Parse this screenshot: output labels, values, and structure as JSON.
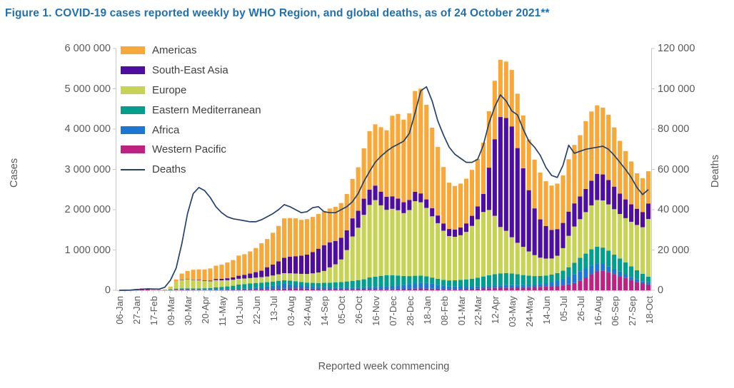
{
  "title": "Figure 1. COVID-19 cases reported weekly by WHO Region, and global deaths, as of 24 October 2021**",
  "colors": {
    "title": "#2170B5",
    "axis_text": "#595959",
    "legend_text": "#3F3F3F",
    "axis_line": "#C9C9C9",
    "americas": "#F8A838",
    "south_east_asia": "#4E0CA0",
    "europe": "#C6D354",
    "eastern_mediterranean": "#009E8C",
    "africa": "#1C76D4",
    "western_pacific": "#BF2181",
    "deaths_line": "#25416B"
  },
  "axes": {
    "left_title": "Cases",
    "right_title": "Deaths",
    "x_title": "Reported week commencing",
    "left_ticks": [
      "0",
      "1 000 000",
      "2 000 000",
      "3 000 000",
      "4 000 000",
      "5 000 000",
      "6 000 000"
    ],
    "right_ticks": [
      "0",
      "20 000",
      "40 000",
      "60 000",
      "80 000",
      "100 000",
      "120 000"
    ]
  },
  "legend": [
    {
      "label": "Americas",
      "color": "#F8A838",
      "type": "box"
    },
    {
      "label": "South-East Asia",
      "color": "#4E0CA0",
      "type": "box"
    },
    {
      "label": "Europe",
      "color": "#C6D354",
      "type": "box"
    },
    {
      "label": "Eastern Mediterranean",
      "color": "#009E8C",
      "type": "box"
    },
    {
      "label": "Africa",
      "color": "#1C76D4",
      "type": "box"
    },
    {
      "label": "Western Pacific",
      "color": "#BF2181",
      "type": "box"
    },
    {
      "label": "Deaths",
      "color": "#25416B",
      "type": "line"
    }
  ],
  "chart_data": {
    "type": "bar",
    "stacked": true,
    "title": "COVID-19 cases reported weekly by WHO Region, and global deaths",
    "xlabel": "Reported week commencing",
    "ylabel_left": "Cases",
    "ylabel_right": "Deaths",
    "ylim_left": [
      0,
      6000000
    ],
    "ylim_right": [
      0,
      120000
    ],
    "grid": false,
    "legend_position": "top-left-inside",
    "x_tick_every": 3,
    "x_tick_labels": [
      "06-Jan",
      "27-Jan",
      "17-Feb",
      "09-Mar",
      "30-Mar",
      "20-Apr",
      "11-May",
      "01-Jun",
      "22-Jun",
      "13-Jul",
      "03-Aug",
      "24-Aug",
      "14-Sep",
      "05-Oct",
      "26-Oct",
      "16-Nov",
      "07-Dec",
      "28-Dec",
      "18-Jan",
      "08-Feb",
      "01-Mar",
      "22-Mar",
      "12-Apr",
      "03-May",
      "24-May",
      "14-Jun",
      "05-Jul",
      "26-Jul",
      "16-Aug",
      "06-Sep",
      "27-Sep",
      "18-Oct"
    ],
    "categories": [
      "06-Jan",
      "13-Jan",
      "20-Jan",
      "27-Jan",
      "03-Feb",
      "10-Feb",
      "17-Feb",
      "24-Feb",
      "02-Mar",
      "09-Mar",
      "16-Mar",
      "23-Mar",
      "30-Mar",
      "06-Apr",
      "13-Apr",
      "20-Apr",
      "27-Apr",
      "04-May",
      "11-May",
      "18-May",
      "25-May",
      "01-Jun",
      "08-Jun",
      "15-Jun",
      "22-Jun",
      "29-Jun",
      "06-Jul",
      "13-Jul",
      "20-Jul",
      "27-Jul",
      "03-Aug",
      "10-Aug",
      "17-Aug",
      "24-Aug",
      "31-Aug",
      "07-Sep",
      "14-Sep",
      "21-Sep",
      "28-Sep",
      "05-Oct",
      "12-Oct",
      "19-Oct",
      "26-Oct",
      "02-Nov",
      "09-Nov",
      "16-Nov",
      "23-Nov",
      "30-Nov",
      "07-Dec",
      "14-Dec",
      "21-Dec",
      "28-Dec",
      "04-Jan",
      "11-Jan",
      "18-Jan",
      "25-Jan",
      "01-Feb",
      "08-Feb",
      "15-Feb",
      "22-Feb",
      "01-Mar",
      "08-Mar",
      "15-Mar",
      "22-Mar",
      "29-Mar",
      "05-Apr",
      "12-Apr",
      "19-Apr",
      "26-Apr",
      "03-May",
      "10-May",
      "17-May",
      "24-May",
      "31-May",
      "07-Jun",
      "14-Jun",
      "21-Jun",
      "28-Jun",
      "05-Jul",
      "12-Jul",
      "19-Jul",
      "26-Jul",
      "02-Aug",
      "09-Aug",
      "16-Aug",
      "23-Aug",
      "30-Aug",
      "06-Sep",
      "13-Sep",
      "20-Sep",
      "27-Sep",
      "04-Oct",
      "11-Oct",
      "18-Oct"
    ],
    "stack_bottom_to_top": [
      "Western Pacific",
      "Africa",
      "Eastern Mediterranean",
      "Europe",
      "South-East Asia",
      "Americas"
    ],
    "series": [
      {
        "name": "Americas",
        "color": "#F8A838",
        "values": [
          0,
          0,
          100,
          300,
          100,
          100,
          100,
          300,
          1000,
          9000,
          55000,
          150000,
          200000,
          240000,
          260000,
          270000,
          300000,
          330000,
          350000,
          390000,
          430000,
          500000,
          510000,
          550000,
          600000,
          680000,
          700000,
          790000,
          880000,
          980000,
          960000,
          940000,
          890000,
          880000,
          870000,
          860000,
          850000,
          840000,
          845000,
          860000,
          900000,
          980000,
          1080000,
          1250000,
          1450000,
          1520000,
          1600000,
          1650000,
          2000000,
          2100000,
          2050000,
          2150000,
          2500000,
          2600000,
          2350000,
          2000000,
          1700000,
          1400000,
          1150000,
          1080000,
          1090000,
          1110000,
          1140000,
          1180000,
          1270000,
          1400000,
          1450000,
          1420000,
          1400000,
          1400000,
          1350000,
          1310000,
          1260000,
          1210000,
          1160000,
          1110000,
          1100000,
          1130000,
          1180000,
          1300000,
          1450000,
          1520000,
          1680000,
          1720000,
          1700000,
          1660000,
          1620000,
          1470000,
          1310000,
          1200000,
          1065000,
          880000,
          840000,
          800000
        ]
      },
      {
        "name": "South-East Asia",
        "color": "#4E0CA0",
        "values": [
          0,
          0,
          0,
          100,
          100,
          100,
          100,
          100,
          200,
          500,
          3000,
          8000,
          10000,
          10000,
          12000,
          15000,
          18000,
          30000,
          38000,
          48000,
          60000,
          75000,
          92000,
          112000,
          135000,
          160000,
          230000,
          270000,
          320000,
          380000,
          410000,
          430000,
          450000,
          480000,
          530000,
          590000,
          640000,
          620000,
          580000,
          540000,
          490000,
          450000,
          420000,
          400000,
          380000,
          360000,
          340000,
          325000,
          310000,
          290000,
          270000,
          250000,
          235000,
          220000,
          210000,
          200000,
          190000,
          180000,
          175000,
          180000,
          190000,
          210000,
          250000,
          320000,
          450000,
          1050000,
          1900000,
          2730000,
          2800000,
          2750000,
          2350000,
          1950000,
          1520000,
          1160000,
          950000,
          810000,
          710000,
          660000,
          625000,
          600000,
          575000,
          565000,
          575000,
          610000,
          650000,
          645000,
          605000,
          560000,
          505000,
          465000,
          432000,
          402000,
          378000,
          385000
        ]
      },
      {
        "name": "Europe",
        "color": "#C6D354",
        "values": [
          0,
          0,
          0,
          300,
          200,
          300,
          500,
          2500,
          9000,
          55000,
          170000,
          210000,
          220000,
          215000,
          200000,
          180000,
          170000,
          180000,
          165000,
          155000,
          148000,
          142000,
          138000,
          135000,
          134000,
          136000,
          140000,
          150000,
          162000,
          175000,
          180000,
          190000,
          200000,
          215000,
          235000,
          260000,
          295000,
          380000,
          450000,
          560000,
          780000,
          1100000,
          1300000,
          1600000,
          1800000,
          1900000,
          1750000,
          1620000,
          1650000,
          1620000,
          1560000,
          1640000,
          1850000,
          1820000,
          1700000,
          1520000,
          1380000,
          1220000,
          1100000,
          1080000,
          1110000,
          1180000,
          1310000,
          1450000,
          1600000,
          1620000,
          1450000,
          1150000,
          1050000,
          900000,
          780000,
          700000,
          600000,
          520000,
          455000,
          420000,
          400000,
          430000,
          560000,
          780000,
          900000,
          960000,
          1030000,
          1090000,
          1160000,
          1170000,
          1150000,
          1125000,
          1105000,
          1100000,
          1105000,
          1125000,
          1155000,
          1430000
        ]
      },
      {
        "name": "Eastern Mediterranean",
        "color": "#009E8C",
        "values": [
          0,
          0,
          0,
          0,
          0,
          100,
          300,
          1500,
          4500,
          17000,
          28000,
          30000,
          32000,
          30000,
          32000,
          35000,
          38000,
          52000,
          62000,
          72000,
          85000,
          110000,
          115000,
          122000,
          125000,
          120000,
          110000,
          105000,
          98000,
          90000,
          88000,
          85000,
          84000,
          86000,
          90000,
          98000,
          108000,
          118000,
          128000,
          140000,
          155000,
          170000,
          185000,
          200000,
          240000,
          255000,
          270000,
          280000,
          265000,
          245000,
          220000,
          200000,
          185000,
          175000,
          165000,
          155000,
          148000,
          142000,
          145000,
          155000,
          168000,
          182000,
          200000,
          220000,
          245000,
          268000,
          285000,
          298000,
          300000,
          290000,
          272000,
          252000,
          232000,
          212000,
          198000,
          190000,
          186000,
          190000,
          202000,
          235000,
          280000,
          330000,
          370000,
          405000,
          415000,
          405000,
          385000,
          355000,
          325000,
          292000,
          262000,
          225000,
          185000,
          142000
        ]
      },
      {
        "name": "Africa",
        "color": "#1C76D4",
        "values": [
          0,
          0,
          0,
          0,
          0,
          0,
          0,
          100,
          200,
          500,
          3000,
          6000,
          8000,
          6000,
          8000,
          9000,
          10000,
          12000,
          14000,
          16000,
          19000,
          23000,
          27000,
          32000,
          40000,
          52000,
          70000,
          85000,
          105000,
          120000,
          110000,
          95000,
          80000,
          65000,
          58000,
          50000,
          46000,
          42000,
          40000,
          39000,
          39000,
          40000,
          42000,
          46000,
          50000,
          54000,
          58000,
          65000,
          75000,
          88000,
          100000,
          115000,
          135000,
          145000,
          138000,
          122000,
          102000,
          84000,
          70000,
          62000,
          57000,
          54000,
          52000,
          52000,
          53000,
          55000,
          57000,
          60000,
          60000,
          58000,
          56000,
          53000,
          56000,
          61000,
          72000,
          87000,
          107000,
          132000,
          162000,
          192000,
          222000,
          240000,
          230000,
          212000,
          195000,
          175000,
          152000,
          132000,
          112000,
          93000,
          78000,
          66000,
          57000,
          51000
        ]
      },
      {
        "name": "Western Pacific",
        "color": "#BF2181",
        "values": [
          100,
          300,
          4000,
          30000,
          45000,
          25000,
          8000,
          6000,
          6000,
          6500,
          10000,
          12000,
          10000,
          8000,
          7000,
          6000,
          6000,
          7000,
          7000,
          8000,
          9000,
          11000,
          12000,
          14000,
          16000,
          18000,
          22000,
          27000,
          33000,
          40000,
          44000,
          46000,
          44000,
          40000,
          37000,
          34000,
          31000,
          29000,
          27000,
          26000,
          25000,
          25000,
          26000,
          27000,
          28000,
          29000,
          30000,
          31000,
          32000,
          34000,
          35000,
          37000,
          41000,
          44000,
          42000,
          39000,
          36000,
          33000,
          31000,
          31000,
          32000,
          34000,
          36000,
          40000,
          45000,
          50000,
          57000,
          62000,
          66000,
          69000,
          71000,
          73000,
          76000,
          80000,
          85000,
          90000,
          96000,
          106000,
          122000,
          145000,
          180000,
          235000,
          310000,
          400000,
          470000,
          480000,
          445000,
          400000,
          352000,
          305000,
          255000,
          205000,
          168000,
          146000
        ]
      }
    ],
    "line_series": {
      "name": "Deaths",
      "color": "#25416B",
      "axis": "right",
      "values": [
        0,
        25,
        100,
        350,
        500,
        700,
        650,
        550,
        1500,
        5000,
        11000,
        23000,
        38000,
        48000,
        51000,
        49500,
        46000,
        41500,
        38500,
        36500,
        35500,
        35000,
        34500,
        34000,
        34000,
        35000,
        36500,
        38000,
        40000,
        42500,
        41500,
        40000,
        38500,
        39000,
        41000,
        41500,
        39000,
        38500,
        38500,
        40000,
        41500,
        44000,
        48000,
        54000,
        59000,
        63500,
        66500,
        69000,
        71000,
        72500,
        74000,
        78000,
        88000,
        99000,
        101000,
        94000,
        84000,
        77000,
        71000,
        67500,
        65500,
        63500,
        63500,
        65000,
        72000,
        83000,
        91000,
        97000,
        94000,
        89000,
        87000,
        80000,
        74000,
        71000,
        67000,
        61000,
        57000,
        56000,
        62000,
        72000,
        68000,
        69000,
        70000,
        70500,
        71000,
        71500,
        70000,
        67000,
        63500,
        60000,
        56000,
        51000,
        47500,
        50000
      ]
    }
  }
}
